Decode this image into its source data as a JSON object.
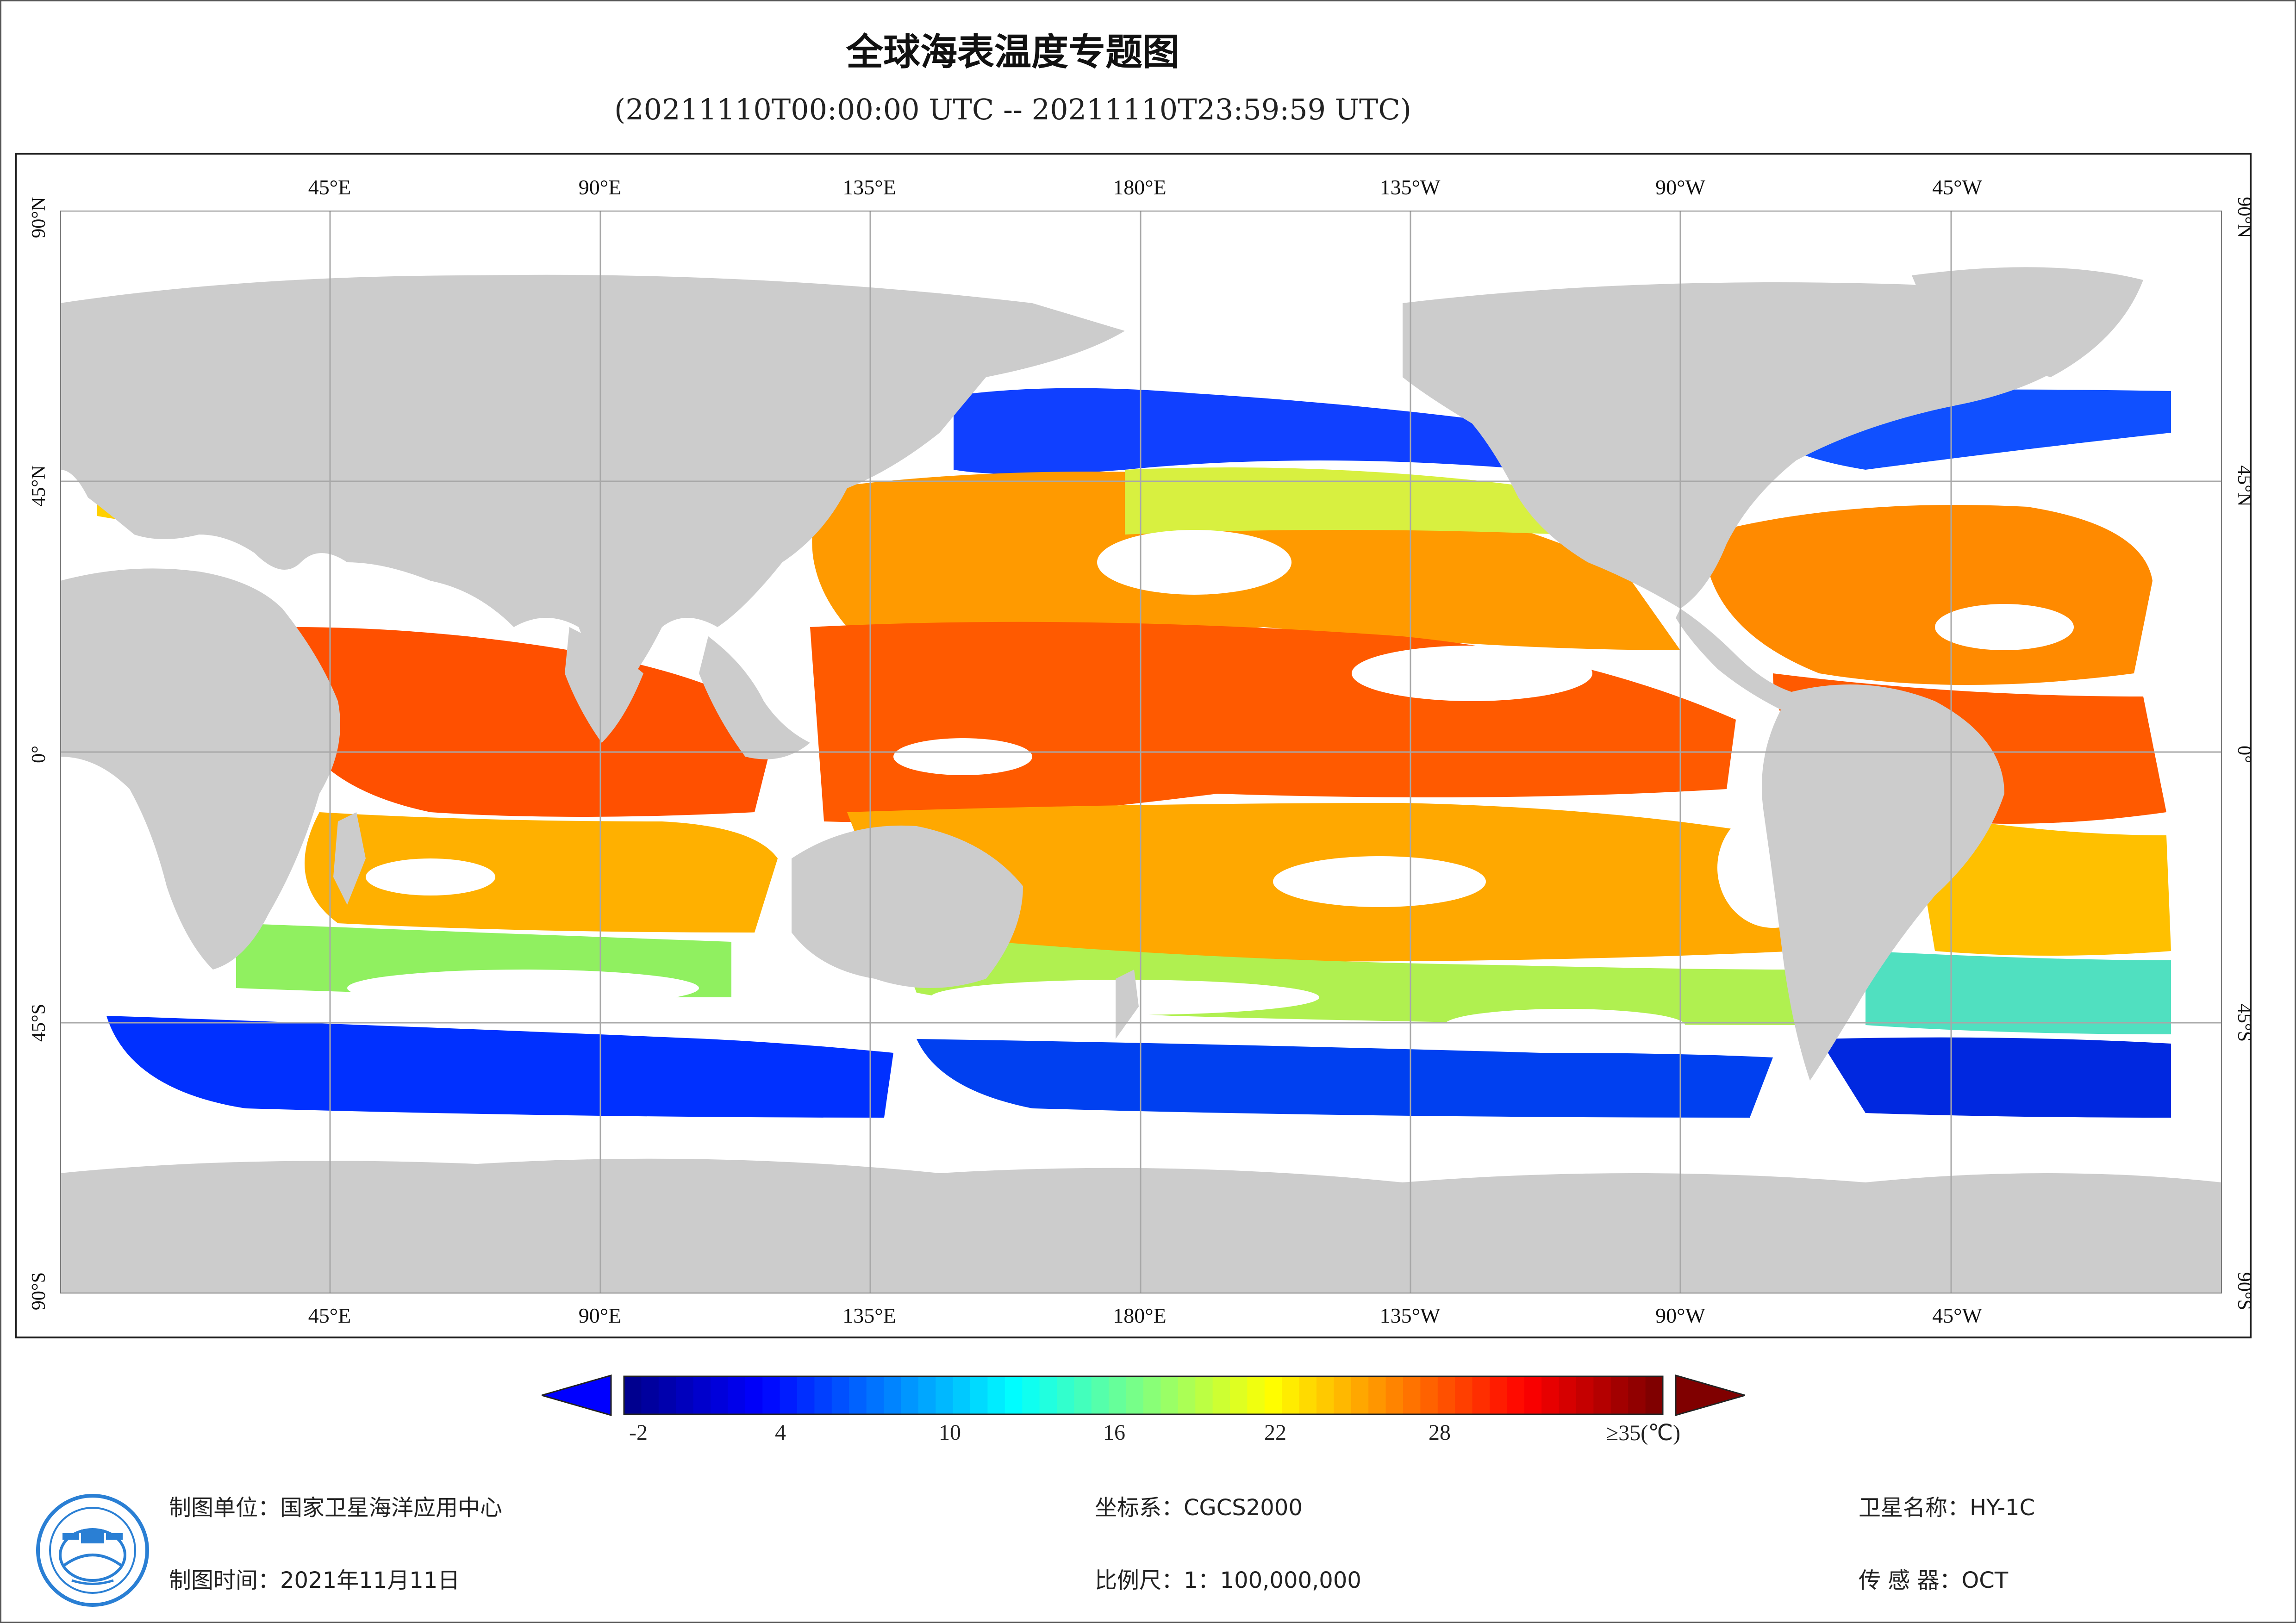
{
  "title": "全球海表温度专题图",
  "subtitle": "(20211110T00:00:00 UTC -- 20211110T23:59:59 UTC)",
  "map": {
    "top_lon_labels": [
      "45°E",
      "90°E",
      "135°E",
      "180°E",
      "135°W",
      "90°W",
      "45°W"
    ],
    "bottom_lon_labels": [
      "45°E",
      "90°E",
      "135°E",
      "180°E",
      "135°W",
      "90°W",
      "45°W"
    ],
    "lat_labels_left": [
      "90°N",
      "45°N",
      "0°",
      "45°S",
      "90°S"
    ],
    "lat_labels_right": [
      "90°N",
      "45°N",
      "0°",
      "45°S",
      "90°S"
    ],
    "colors": {
      "land": "#cccccc",
      "no_data": "#ffffff",
      "grid": "#a8a8a8"
    }
  },
  "colorbar": {
    "tick_labels": [
      "-2",
      "4",
      "10",
      "16",
      "22",
      "28",
      "≥35(℃)"
    ],
    "min_value": -2,
    "max_value": 35,
    "palette": [
      "#00008f",
      "#0000ff",
      "#0080ff",
      "#00ffff",
      "#80ff80",
      "#ffff00",
      "#ff8000",
      "#ff0000",
      "#800000"
    ],
    "under_color": "#0000ff",
    "over_color": "#800000"
  },
  "footer": {
    "org_label": "制图单位：国家卫星海洋应用中心",
    "date_label": "制图时间：2021年11月11日",
    "crs_label": "坐标系：CGCS2000",
    "scale_label": "比例尺：1：100,000,000",
    "satellite_label": "卫星名称：HY-1C",
    "sensor_label": "传 感 器：OCT"
  }
}
